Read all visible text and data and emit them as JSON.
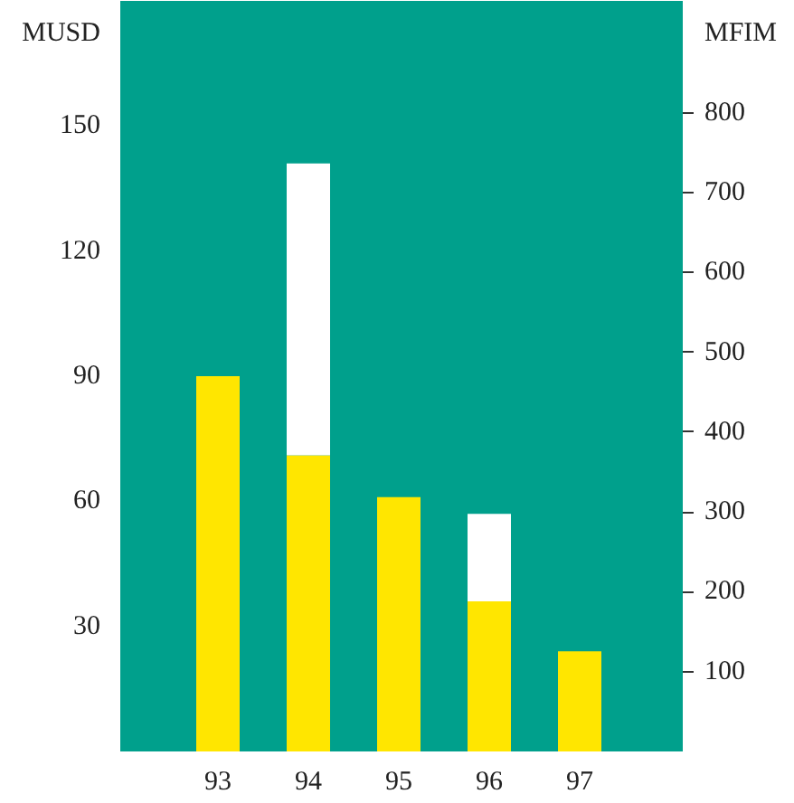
{
  "chart_data": {
    "type": "bar",
    "stacked": true,
    "categories": [
      "93",
      "94",
      "95",
      "96",
      "97"
    ],
    "series": [
      {
        "color": "#ffe600",
        "values": [
          90,
          71,
          61,
          36,
          24
        ]
      },
      {
        "color": "#ffffff",
        "values": [
          null,
          70,
          null,
          21,
          null
        ]
      }
    ],
    "ylabel": "MUSD",
    "y2label": "MFIM",
    "ylim": [
      0,
      180
    ],
    "yticks": [
      30,
      60,
      90,
      120,
      150
    ],
    "y2lim": [
      0,
      940
    ],
    "y2ticks": [
      100,
      200,
      300,
      400,
      500,
      600,
      700,
      800
    ],
    "grid": false
  }
}
